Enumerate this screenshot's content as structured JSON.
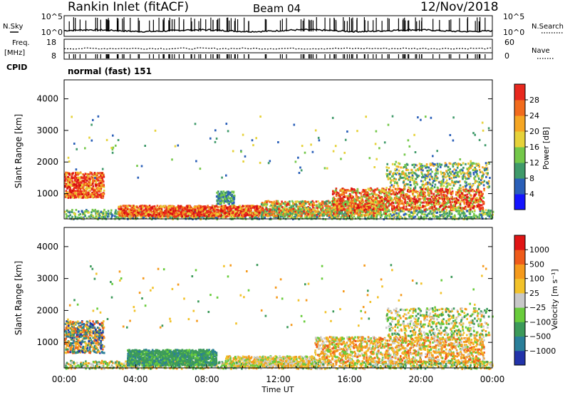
{
  "header": {
    "station": "Rankin Inlet (fitACF)",
    "beam": "Beam 04",
    "date": "12/Nov/2018"
  },
  "sky_panel": {
    "left_label": "N.Sky",
    "left_ticks": [
      "10^5",
      "10^0"
    ],
    "right_ticks": [
      "10^5",
      "10^0"
    ],
    "right_label": "N.Search"
  },
  "freq_panel": {
    "left_label_1": "Freq.",
    "left_label_2": "[MHz]",
    "left_ticks": [
      "18",
      "8"
    ],
    "right_ticks": [
      "60",
      "0"
    ],
    "right_label": "Nave",
    "cpid_label": "CPID"
  },
  "mode_label": "normal (fast) 151",
  "time_axis": {
    "title": "Time UT",
    "ticks": [
      "00:00",
      "04:00",
      "08:00",
      "12:00",
      "16:00",
      "20:00",
      "00:00"
    ],
    "range_hours": [
      0,
      24
    ]
  },
  "colors": {
    "power": [
      "#1414ff",
      "#2a5fb8",
      "#3f9a6a",
      "#74c84a",
      "#e6d23a",
      "#f5a623",
      "#f26b1d",
      "#e8281e",
      "#d70f0f"
    ],
    "velocity": [
      "#2233aa",
      "#2a7f9a",
      "#3c9a5a",
      "#69cc3c",
      "#c8c8c8",
      "#f2c22a",
      "#f59a1c",
      "#ef5b1a",
      "#e01515"
    ]
  },
  "chart_data": [
    {
      "type": "heatmap",
      "name": "power",
      "ylabel": "Slant Range [km]",
      "yticks": [
        "1000",
        "2000",
        "3000",
        "4000"
      ],
      "ylim": [
        200,
        4600
      ],
      "xlim": [
        0,
        24
      ],
      "colorbar": {
        "title": "Power [dB]",
        "ticks": [
          "4",
          "8",
          "12",
          "16",
          "20",
          "24",
          "28"
        ],
        "range": [
          0,
          32
        ]
      }
    },
    {
      "type": "heatmap",
      "name": "velocity",
      "ylabel": "Slant Range [km]",
      "yticks": [
        "1000",
        "2000",
        "3000",
        "4000"
      ],
      "ylim": [
        200,
        4600
      ],
      "xlim": [
        0,
        24
      ],
      "colorbar": {
        "title": "Velocity [m s⁻¹]",
        "ticks": [
          "1000",
          "500",
          "100",
          "25",
          "−25",
          "−100",
          "−500",
          "−1000"
        ]
      }
    }
  ]
}
